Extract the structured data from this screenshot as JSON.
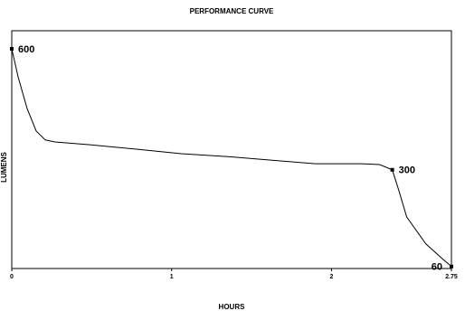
{
  "chart_data": {
    "type": "line",
    "title": "PERFORMANCE CURVE",
    "xlabel": "HOURS",
    "ylabel": "LUMENS",
    "x": [
      0,
      0.04,
      0.096,
      0.153,
      0.21,
      0.27,
      0.49,
      0.78,
      1.06,
      1.34,
      1.62,
      1.9,
      2.19,
      2.3,
      2.38,
      2.42,
      2.47,
      2.59,
      2.7,
      2.75
    ],
    "series": [
      {
        "color": "#000000",
        "values": [
          600,
          530,
          452,
          396,
          374,
          369,
          362,
          351,
          340,
          333,
          324,
          315,
          315,
          313,
          300,
          250,
          183,
          116,
          77,
          60
        ],
        "value_labels": [
          "600",
          null,
          null,
          null,
          null,
          null,
          null,
          null,
          null,
          null,
          null,
          null,
          null,
          null,
          "300",
          null,
          null,
          null,
          null,
          "60"
        ]
      }
    ],
    "xlim": [
      0,
      2.75
    ],
    "xticks": [
      0,
      1,
      2,
      2.75
    ],
    "ylim": [
      55,
      645
    ]
  }
}
